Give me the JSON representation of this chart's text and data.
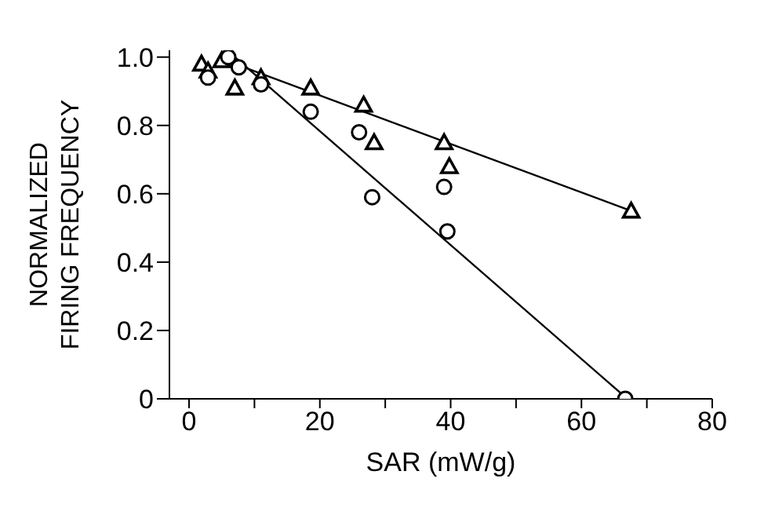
{
  "chart_data": {
    "type": "scatter",
    "xlabel": "SAR (mW/g)",
    "ylabel": "NORMALIZED\nFIRING FREQUENCY",
    "xlim": [
      -3,
      80
    ],
    "xticks": [
      0,
      {
        "value": 10,
        "label": null
      },
      20,
      {
        "value": 30,
        "label": null
      },
      40,
      {
        "value": 50,
        "label": null
      },
      60,
      {
        "value": 70,
        "label": null
      },
      80
    ],
    "ylim": [
      0,
      1.02
    ],
    "yticks": [
      0,
      0.2,
      0.4,
      0.6,
      0.8,
      {
        "value": 1,
        "label": "1.0"
      }
    ],
    "grid": false,
    "legend": false,
    "series": [
      {
        "marker": "circle",
        "color": "#000000",
        "x": [
          2.9,
          6,
          7.6,
          11,
          18.6,
          26,
          28,
          39,
          39.5,
          66.7
        ],
        "values": [
          0.94,
          1.0,
          0.97,
          0.92,
          0.84,
          0.78,
          0.59,
          0.62,
          0.49,
          0.0
        ]
      },
      {
        "marker": "triangle",
        "color": "#000000",
        "x": [
          1.9,
          2.9,
          5,
          7,
          11,
          18.6,
          26.7,
          28.3,
          39,
          39.8,
          67.6
        ],
        "values": [
          0.98,
          0.96,
          0.99,
          0.91,
          0.94,
          0.91,
          0.86,
          0.75,
          0.75,
          0.68,
          0.55
        ]
      },
      {
        "type": "line",
        "marker": "none",
        "color": "#000000",
        "x": [
          7,
          67
        ],
        "values": [
          1.0,
          0.0
        ]
      },
      {
        "type": "line",
        "marker": "none",
        "color": "#000000",
        "x": [
          7,
          67.6
        ],
        "values": [
          0.98,
          0.55
        ]
      }
    ]
  }
}
